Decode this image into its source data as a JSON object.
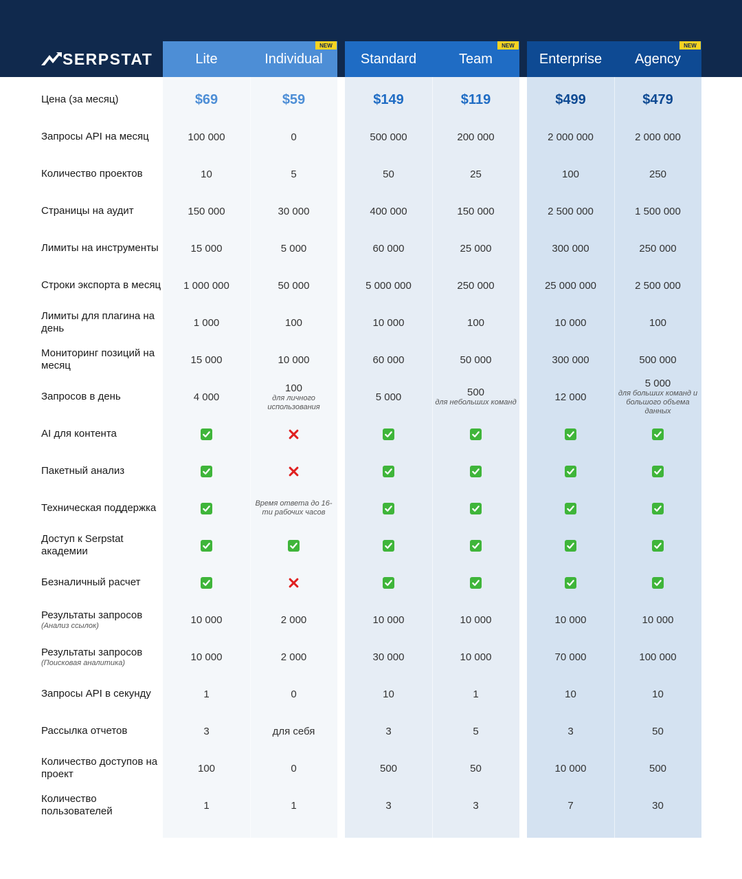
{
  "brand": "SERPSTAT",
  "plans": [
    {
      "name": "Lite",
      "badge": "",
      "price": "$69"
    },
    {
      "name": "Individual",
      "badge": "NEW",
      "price": "$59"
    },
    {
      "name": "Standard",
      "badge": "",
      "price": "$149"
    },
    {
      "name": "Team",
      "badge": "NEW",
      "price": "$119"
    },
    {
      "name": "Enterprise",
      "badge": "",
      "price": "$499"
    },
    {
      "name": "Agency",
      "badge": "NEW",
      "price": "$479"
    }
  ],
  "colors": {
    "header_bg": "#10294d",
    "lite_group": "#4d8ed6",
    "standard_group": "#1f6cc4",
    "enterprise_group": "#0e4a93",
    "badge": "#f7d322",
    "check": "#3fb53a",
    "cross": "#e02020"
  },
  "rows": [
    {
      "label": "Цена (за месяц)",
      "note": "",
      "type": "price"
    },
    {
      "label": "Запросы API на месяц",
      "note": "",
      "values": [
        "100 000",
        "0",
        "500 000",
        "200 000",
        "2 000 000",
        "2 000 000"
      ]
    },
    {
      "label": "Количество проектов",
      "note": "",
      "values": [
        "10",
        "5",
        "50",
        "25",
        "100",
        "250"
      ]
    },
    {
      "label": "Страницы на аудит",
      "note": "",
      "values": [
        "150 000",
        "30 000",
        "400 000",
        "150 000",
        "2 500 000",
        "1 500 000"
      ]
    },
    {
      "label": "Лимиты на инструменты",
      "note": "",
      "values": [
        "15 000",
        "5 000",
        "60 000",
        "25 000",
        "300 000",
        "250 000"
      ]
    },
    {
      "label": "Строки экспорта в месяц",
      "note": "",
      "values": [
        "1 000 000",
        "50 000",
        "5 000 000",
        "250 000",
        "25 000 000",
        "2 500 000"
      ]
    },
    {
      "label": "Лимиты для плагина на день",
      "note": "",
      "values": [
        "1 000",
        "100",
        "10 000",
        "100",
        "10 000",
        "100"
      ]
    },
    {
      "label": "Мониторинг позиций на месяц",
      "note": "",
      "values": [
        "15 000",
        "10 000",
        "60 000",
        "50 000",
        "300 000",
        "500 000"
      ]
    },
    {
      "label": "Запросов в день",
      "note": "",
      "values": [
        "4 000",
        "100",
        "5 000",
        "500",
        "12 000",
        "5 000"
      ],
      "notes": [
        "",
        "для личного использования",
        "",
        "для небольших команд",
        "",
        "для больших команд и большого объема данных"
      ]
    },
    {
      "label": "AI для контента",
      "note": "",
      "values": [
        "check",
        "cross",
        "check",
        "check",
        "check",
        "check"
      ]
    },
    {
      "label": "Пакетный анализ",
      "note": "",
      "values": [
        "check",
        "cross",
        "check",
        "check",
        "check",
        "check"
      ]
    },
    {
      "label": "Техническая поддержка",
      "note": "",
      "values": [
        "check",
        "Время ответа до 16-ти рабочих часов",
        "check",
        "check",
        "check",
        "check"
      ]
    },
    {
      "label": "Доступ к Serpstat академии",
      "note": "",
      "values": [
        "check",
        "check",
        "check",
        "check",
        "check",
        "check"
      ]
    },
    {
      "label": "Безналичный расчет",
      "note": "",
      "values": [
        "check",
        "cross",
        "check",
        "check",
        "check",
        "check"
      ]
    },
    {
      "label": "Результаты запросов",
      "note": "(Анализ ссылок)",
      "values": [
        "10 000",
        "2 000",
        "10 000",
        "10 000",
        "10 000",
        "10 000"
      ]
    },
    {
      "label": "Результаты запросов",
      "note": "(Поисковая аналитика)",
      "values": [
        "10 000",
        "2 000",
        "30 000",
        "10 000",
        "70 000",
        "100 000"
      ]
    },
    {
      "label": "Запросы API в секунду",
      "note": "",
      "values": [
        "1",
        "0",
        "10",
        "1",
        "10",
        "10"
      ]
    },
    {
      "label": "Рассылка отчетов",
      "note": "",
      "values": [
        "3",
        "для себя",
        "3",
        "5",
        "3",
        "50"
      ]
    },
    {
      "label": "Количество доступов на проект",
      "note": "",
      "values": [
        "100",
        "0",
        "500",
        "50",
        "10 000",
        "500"
      ]
    },
    {
      "label": "Количество пользователей",
      "note": "",
      "values": [
        "1",
        "1",
        "3",
        "3",
        "7",
        "30"
      ]
    }
  ]
}
